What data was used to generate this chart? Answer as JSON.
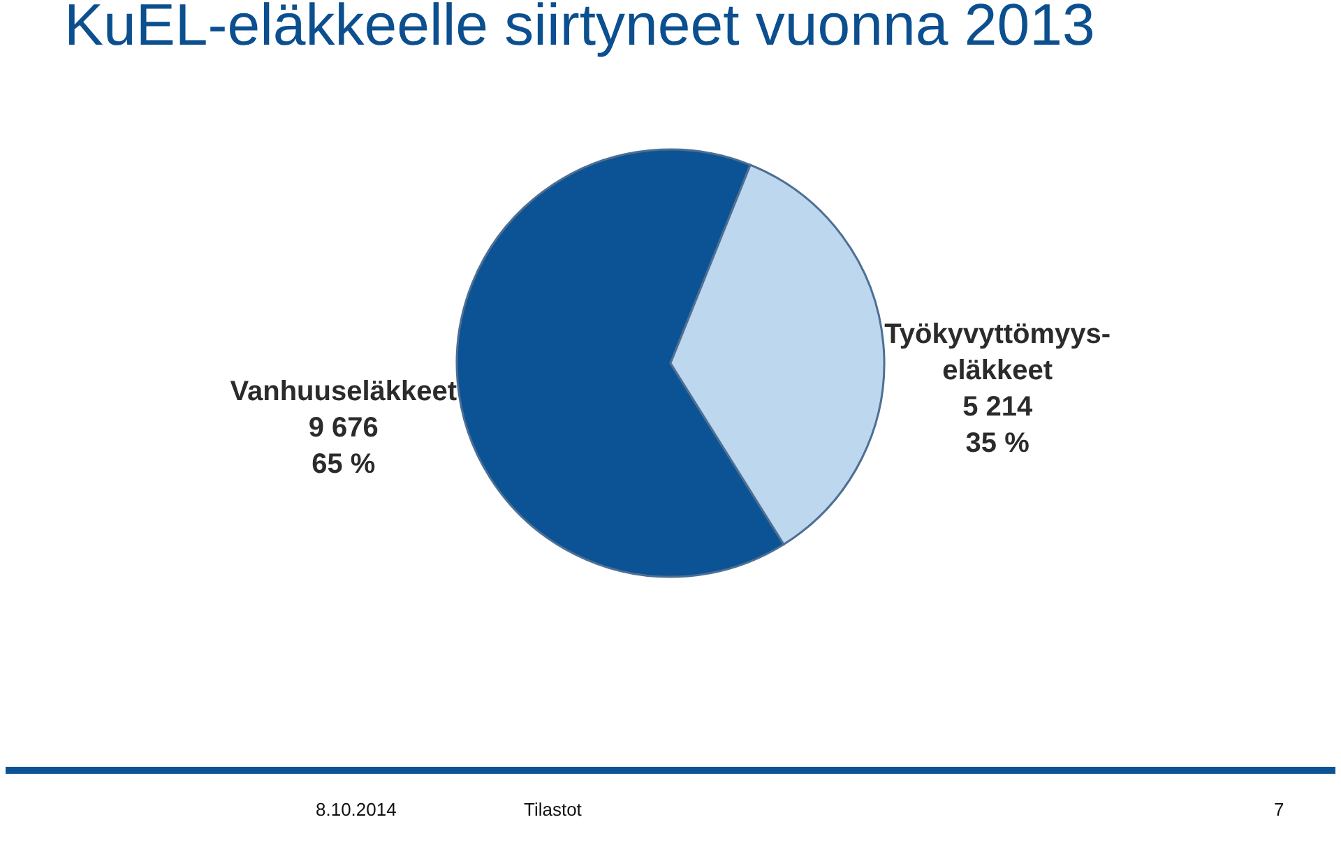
{
  "chart_data": {
    "type": "pie",
    "title": "KuEL-eläkkeelle siirtyneet vuonna 2013",
    "categories": [
      "Vanhuuseläkkeet",
      "Työkyvyttömyys-eläkkeet"
    ],
    "values": [
      9676,
      5214
    ],
    "value_labels": [
      "9 676\n65 %",
      "5 214\n35 %"
    ],
    "colors": [
      "#0b5394",
      "#bdd7ee"
    ],
    "annotations": [
      "8.10.2014",
      "Tilastot",
      "7"
    ]
  }
}
